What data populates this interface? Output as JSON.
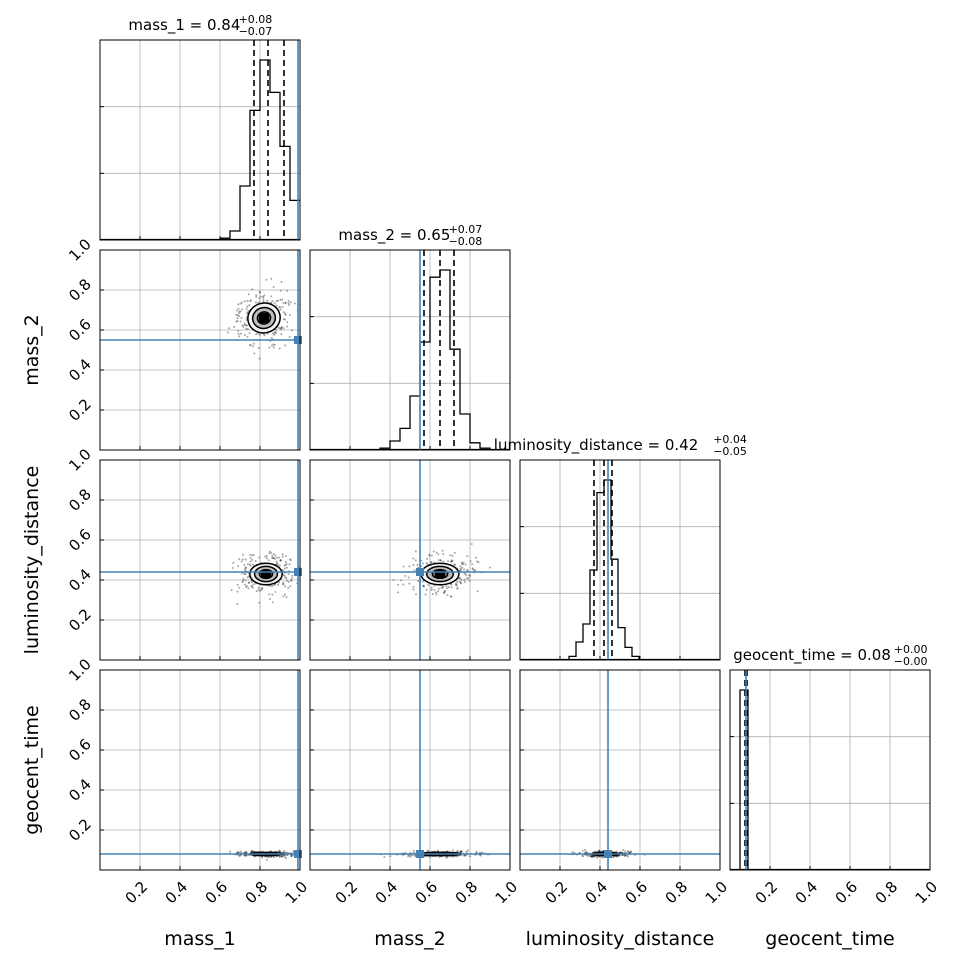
{
  "chart_data": {
    "type": "corner",
    "parameters": [
      "mass_1",
      "mass_2",
      "luminosity_distance",
      "geocent_time"
    ],
    "axis_labels": [
      "mass_1",
      "mass_2",
      "luminosity_distance",
      "geocent_time"
    ],
    "titles": [
      {
        "param": "mass_1",
        "name": "mass_1",
        "median": "0.84",
        "plus": "+0.08",
        "minus": "−0.07"
      },
      {
        "param": "mass_2",
        "name": "mass_2",
        "median": "0.65",
        "plus": "+0.07",
        "minus": "−0.08"
      },
      {
        "param": "luminosity_distance",
        "name": "luminosity_distance",
        "median": "0.42",
        "plus": "+0.04",
        "minus": "−0.05"
      },
      {
        "param": "geocent_time",
        "name": "geocent_time",
        "median": "0.08",
        "plus": "+0.00",
        "minus": "−0.00"
      }
    ],
    "axis_range": [
      0,
      1
    ],
    "tick_values": [
      0.2,
      0.4,
      0.6,
      0.8,
      1.0
    ],
    "tick_labels": [
      "0.2",
      "0.4",
      "0.6",
      "0.8",
      "1.0"
    ],
    "grid": true,
    "truths": [
      0.99,
      0.55,
      0.44,
      0.08
    ],
    "truth_color": "#4682b4",
    "quantiles": {
      "mass_1": [
        0.77,
        0.84,
        0.92
      ],
      "mass_2": [
        0.57,
        0.65,
        0.72
      ],
      "luminosity_distance": [
        0.37,
        0.42,
        0.46
      ],
      "geocent_time": [
        0.075,
        0.08,
        0.085
      ]
    },
    "histograms": {
      "mass_1": {
        "bin_width": 0.05,
        "bin_starts": [
          0.6,
          0.65,
          0.7,
          0.75,
          0.8,
          0.85,
          0.9,
          0.95
        ],
        "heights": [
          0.01,
          0.05,
          0.3,
          0.72,
          1.0,
          0.82,
          0.52,
          0.22
        ]
      },
      "mass_2": {
        "bin_width": 0.05,
        "bin_starts": [
          0.35,
          0.4,
          0.45,
          0.5,
          0.55,
          0.6,
          0.65,
          0.7,
          0.75,
          0.8,
          0.85
        ],
        "heights": [
          0.01,
          0.05,
          0.12,
          0.3,
          0.6,
          0.96,
          1.0,
          0.56,
          0.2,
          0.04,
          0.01
        ]
      },
      "luminosity_distance": {
        "bin_width": 0.035,
        "bin_starts": [
          0.245,
          0.28,
          0.315,
          0.35,
          0.385,
          0.42,
          0.455,
          0.49,
          0.525,
          0.56
        ],
        "heights": [
          0.02,
          0.1,
          0.2,
          0.5,
          0.93,
          1.0,
          0.56,
          0.18,
          0.07,
          0.02
        ]
      },
      "geocent_time": {
        "bin_width": 0.02,
        "bin_starts": [
          0.05,
          0.07
        ],
        "heights": [
          1.0,
          1.0
        ]
      }
    },
    "contours_2d": [
      {
        "x": "mass_1",
        "y": "mass_2",
        "center": [
          0.82,
          0.66
        ],
        "sigma": [
          0.06,
          0.055
        ],
        "rho": -0.45
      },
      {
        "x": "mass_1",
        "y": "luminosity_distance",
        "center": [
          0.83,
          0.43
        ],
        "sigma": [
          0.06,
          0.04
        ],
        "rho": 0.0
      },
      {
        "x": "mass_2",
        "y": "luminosity_distance",
        "center": [
          0.65,
          0.43
        ],
        "sigma": [
          0.07,
          0.04
        ],
        "rho": 0.0
      },
      {
        "x": "mass_1",
        "y": "geocent_time",
        "center": [
          0.83,
          0.08
        ],
        "sigma": [
          0.06,
          0.006
        ],
        "rho": 0.0
      },
      {
        "x": "mass_2",
        "y": "geocent_time",
        "center": [
          0.65,
          0.08
        ],
        "sigma": [
          0.08,
          0.006
        ],
        "rho": 0.0
      },
      {
        "x": "luminosity_distance",
        "y": "geocent_time",
        "center": [
          0.43,
          0.08
        ],
        "sigma": [
          0.05,
          0.006
        ],
        "rho": 0.0
      }
    ]
  }
}
